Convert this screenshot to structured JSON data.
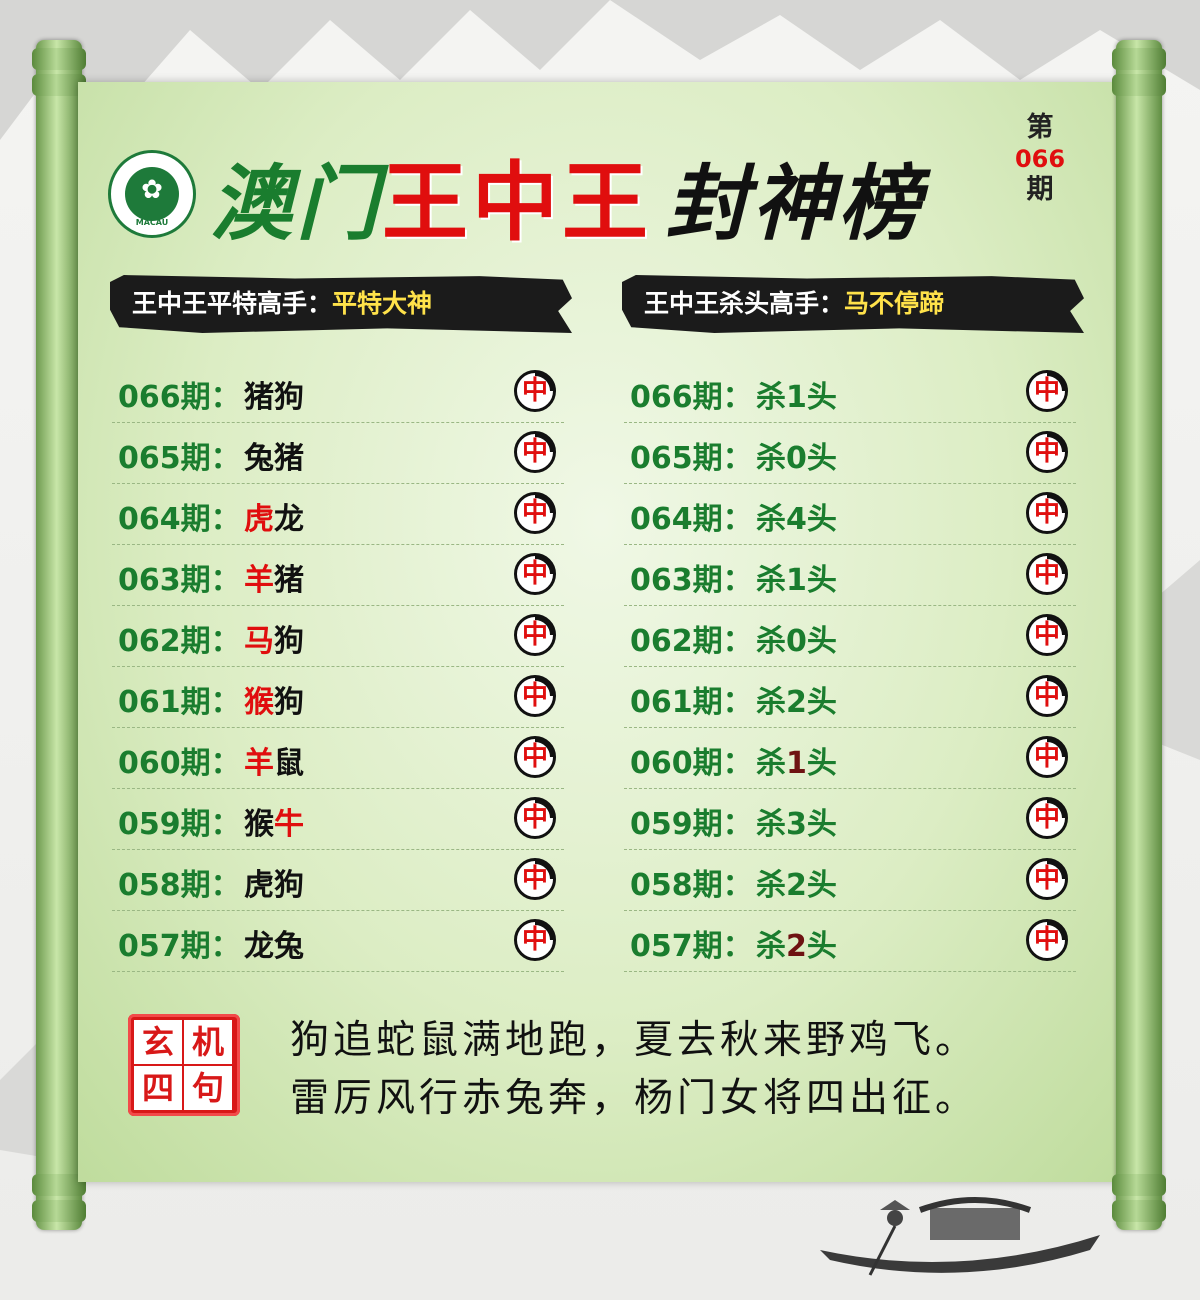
{
  "header": {
    "title_part1": "澳门",
    "title_part2": "王中王",
    "title_part3": "封神榜",
    "issue_prefix": "第",
    "issue_number": "066",
    "issue_suffix": "期",
    "emblem_text": "MACAU"
  },
  "left_panel": {
    "header_label": "王中王平特高手：",
    "header_highlight": "平特大神",
    "rows": [
      {
        "label": "066期：",
        "value": "猪狗",
        "red": "",
        "badge": "中"
      },
      {
        "label": "065期：",
        "value": "兔猪",
        "red": "",
        "badge": "中"
      },
      {
        "label": "064期：",
        "value_red": "虎",
        "value_rest": "龙",
        "badge": "中"
      },
      {
        "label": "063期：",
        "value_red": "羊",
        "value_rest": "猪",
        "badge": "中"
      },
      {
        "label": "062期：",
        "value_red": "马",
        "value_rest": "狗",
        "badge": "中"
      },
      {
        "label": "061期：",
        "value_red": "猴",
        "value_rest": "狗",
        "badge": "中"
      },
      {
        "label": "060期：",
        "value_red": "羊",
        "value_rest": "鼠",
        "badge": "中"
      },
      {
        "label": "059期：",
        "value_first": "猴",
        "value_red2": "牛",
        "badge": "中"
      },
      {
        "label": "058期：",
        "value": "虎狗",
        "badge": "中"
      },
      {
        "label": "057期：",
        "value": "龙兔",
        "badge": "中"
      }
    ]
  },
  "right_panel": {
    "header_label": "王中王杀头高手：",
    "header_highlight": "马不停蹄",
    "rows": [
      {
        "label": "066期：",
        "value": "杀1头",
        "badge": "中"
      },
      {
        "label": "065期：",
        "value": "杀0头",
        "badge": "中"
      },
      {
        "label": "064期：",
        "value": "杀4头",
        "badge": "中"
      },
      {
        "label": "063期：",
        "value": "杀1头",
        "badge": "中"
      },
      {
        "label": "062期：",
        "value": "杀0头",
        "badge": "中"
      },
      {
        "label": "061期：",
        "value": "杀2头",
        "badge": "中"
      },
      {
        "label": "060期：",
        "v1": "杀",
        "v2": "1",
        "v3": "头",
        "badge": "中"
      },
      {
        "label": "059期：",
        "value": "杀3头",
        "badge": "中"
      },
      {
        "label": "058期：",
        "value": "杀2头",
        "badge": "中"
      },
      {
        "label": "057期：",
        "v1": "杀",
        "v2": "2",
        "v3": "头",
        "badge": "中"
      }
    ]
  },
  "seal": {
    "c1": "机",
    "c2": "玄",
    "c3": "句",
    "c4": "四"
  },
  "poem": {
    "line1": "狗追蛇鼠满地跑，夏去秋来野鸡飞。",
    "line2": "雷厉风行赤兔奔，杨门女将四出征。"
  },
  "colors": {
    "green": "#1a7d2e",
    "red": "#e00e0e",
    "scroll": "#dcedc4",
    "highlight": "#ffe24a"
  }
}
